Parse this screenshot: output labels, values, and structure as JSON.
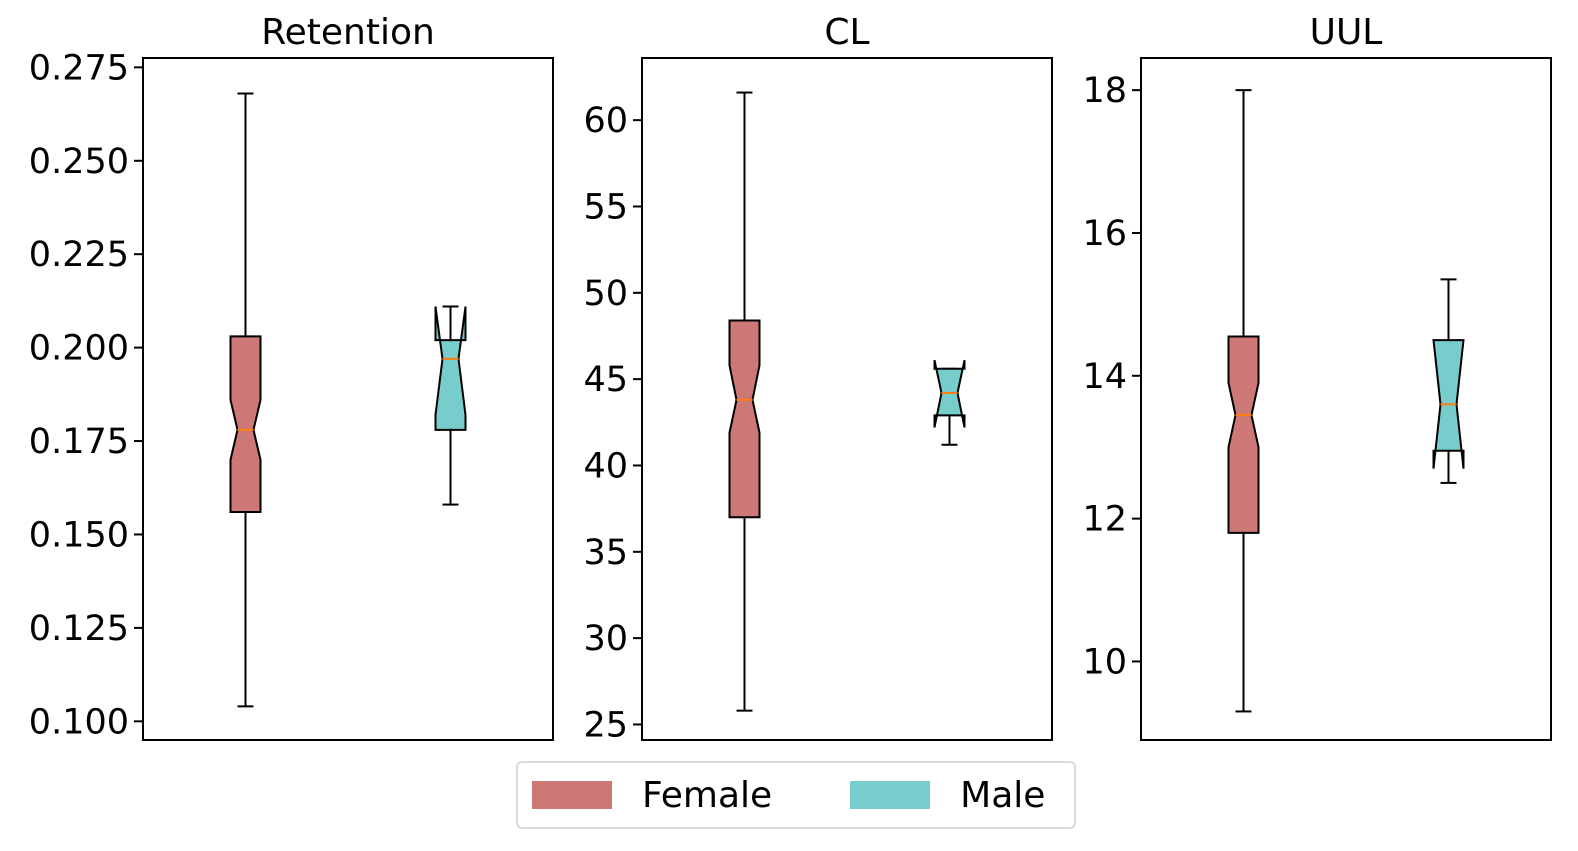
{
  "chart_data": [
    {
      "type": "box",
      "title": "Retention",
      "xlabel": "",
      "ylabel": "",
      "ylim": [
        0.095,
        0.2775
      ],
      "yticks": [
        0.1,
        0.125,
        0.15,
        0.175,
        0.2,
        0.225,
        0.25,
        0.275
      ],
      "ytick_labels": [
        "0.100",
        "0.125",
        "0.150",
        "0.175",
        "0.200",
        "0.225",
        "0.250",
        "0.275"
      ],
      "series": [
        {
          "name": "Female",
          "whislo": 0.104,
          "q1": 0.156,
          "notch_lo": 0.17,
          "med": 0.178,
          "notch_hi": 0.186,
          "q3": 0.203,
          "whishi": 0.268
        },
        {
          "name": "Male",
          "whislo": 0.158,
          "q1": 0.178,
          "notch_lo": 0.182,
          "med": 0.197,
          "notch_hi": 0.211,
          "q3": 0.202,
          "whishi": 0.211
        }
      ]
    },
    {
      "type": "box",
      "title": "CL",
      "xlabel": "",
      "ylabel": "",
      "ylim": [
        24.1,
        63.6
      ],
      "yticks": [
        25,
        30,
        35,
        40,
        45,
        50,
        55,
        60
      ],
      "ytick_labels": [
        "25",
        "30",
        "35",
        "40",
        "45",
        "50",
        "55",
        "60"
      ],
      "series": [
        {
          "name": "Female",
          "whislo": 25.8,
          "q1": 37.0,
          "notch_lo": 41.9,
          "med": 43.8,
          "notch_hi": 45.8,
          "q3": 48.4,
          "whishi": 61.6
        },
        {
          "name": "Male",
          "whislo": 41.2,
          "q1": 42.9,
          "notch_lo": 42.2,
          "med": 44.2,
          "notch_hi": 46.1,
          "q3": 45.6,
          "whishi": 45.6
        }
      ]
    },
    {
      "type": "box",
      "title": "UUL",
      "xlabel": "",
      "ylabel": "",
      "ylim": [
        8.9,
        18.45
      ],
      "yticks": [
        10,
        12,
        14,
        16,
        18
      ],
      "ytick_labels": [
        "10",
        "12",
        "14",
        "16",
        "18"
      ],
      "series": [
        {
          "name": "Female",
          "whislo": 9.3,
          "q1": 11.8,
          "notch_lo": 13.0,
          "med": 13.45,
          "notch_hi": 13.9,
          "q3": 14.55,
          "whishi": 18.0
        },
        {
          "name": "Male",
          "whislo": 12.5,
          "q1": 12.95,
          "notch_lo": 12.7,
          "med": 13.6,
          "notch_hi": 14.5,
          "q3": 14.5,
          "whishi": 15.35
        }
      ]
    }
  ],
  "legend": {
    "position": "bottom-center",
    "items": [
      {
        "label": "Female",
        "color": "#cd7777"
      },
      {
        "label": "Male",
        "color": "#77cccc"
      }
    ]
  },
  "colors": {
    "female": "#cd7777",
    "male": "#77cccc",
    "median": "#ff7f0e"
  }
}
